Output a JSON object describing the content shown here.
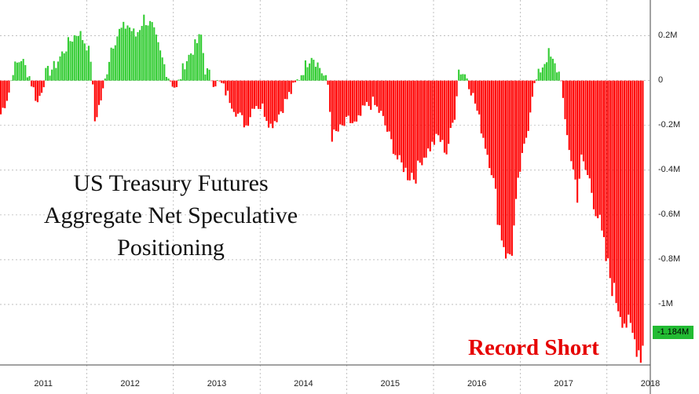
{
  "chart_data": {
    "type": "bar",
    "title": [
      "US Treasury Futures",
      "Aggregate Net Speculative",
      "Positioning"
    ],
    "annotation": "Record Short",
    "y_unit": "contracts",
    "ylim": [
      -1.27,
      0.36
    ],
    "y_ticks": [
      {
        "value": 0.2,
        "label": "0.2M"
      },
      {
        "value": 0,
        "label": "0"
      },
      {
        "value": -0.2,
        "label": "-0.2M"
      },
      {
        "value": -0.4,
        "label": "-0.4M"
      },
      {
        "value": -0.6,
        "label": "-0.6M"
      },
      {
        "value": -0.8,
        "label": "-0.8M"
      },
      {
        "value": -1.0,
        "label": "-1M"
      }
    ],
    "last_value": {
      "value": -1.184,
      "label": "-1.184M"
    },
    "x_categories": [
      "2011",
      "2012",
      "2013",
      "2014",
      "2015",
      "2016",
      "2017",
      "2018"
    ],
    "positive_color": "#33cc33",
    "negative_color": "#ff0000",
    "series_note_knots": "weekly values in millions of contracts, interpolated between knots",
    "knots": [
      [
        0,
        -0.15
      ],
      [
        4,
        -0.05
      ],
      [
        6,
        0.05
      ],
      [
        10,
        0.1
      ],
      [
        14,
        0.02
      ],
      [
        18,
        -0.1
      ],
      [
        22,
        0.03
      ],
      [
        26,
        0.06
      ],
      [
        30,
        0.12
      ],
      [
        34,
        0.18
      ],
      [
        38,
        0.22
      ],
      [
        42,
        0.16
      ],
      [
        44,
        0.1
      ],
      [
        46,
        -0.18
      ],
      [
        50,
        -0.05
      ],
      [
        54,
        0.15
      ],
      [
        58,
        0.22
      ],
      [
        62,
        0.25
      ],
      [
        66,
        0.2
      ],
      [
        70,
        0.28
      ],
      [
        74,
        0.24
      ],
      [
        78,
        0.12
      ],
      [
        82,
        0.02
      ],
      [
        86,
        -0.04
      ],
      [
        90,
        0.08
      ],
      [
        94,
        0.14
      ],
      [
        98,
        0.2
      ],
      [
        100,
        0.05
      ],
      [
        104,
        0.0
      ],
      [
        108,
        -0.02
      ],
      [
        112,
        -0.08
      ],
      [
        116,
        -0.15
      ],
      [
        120,
        -0.2
      ],
      [
        124,
        -0.1
      ],
      [
        128,
        -0.12
      ],
      [
        132,
        -0.2
      ],
      [
        136,
        -0.15
      ],
      [
        140,
        -0.08
      ],
      [
        144,
        -0.02
      ],
      [
        148,
        0.05
      ],
      [
        152,
        0.12
      ],
      [
        156,
        0.06
      ],
      [
        160,
        -0.02
      ],
      [
        162,
        -0.25
      ],
      [
        166,
        -0.22
      ],
      [
        170,
        -0.18
      ],
      [
        174,
        -0.2
      ],
      [
        178,
        -0.12
      ],
      [
        182,
        -0.1
      ],
      [
        186,
        -0.15
      ],
      [
        190,
        -0.25
      ],
      [
        194,
        -0.35
      ],
      [
        198,
        -0.4
      ],
      [
        202,
        -0.42
      ],
      [
        206,
        -0.35
      ],
      [
        210,
        -0.3
      ],
      [
        214,
        -0.25
      ],
      [
        218,
        -0.32
      ],
      [
        222,
        -0.15
      ],
      [
        224,
        0.05
      ],
      [
        228,
        0.02
      ],
      [
        232,
        -0.1
      ],
      [
        236,
        -0.25
      ],
      [
        240,
        -0.4
      ],
      [
        244,
        -0.65
      ],
      [
        248,
        -0.8
      ],
      [
        250,
        -0.75
      ],
      [
        254,
        -0.4
      ],
      [
        258,
        -0.2
      ],
      [
        260,
        -0.05
      ],
      [
        264,
        0.05
      ],
      [
        268,
        0.12
      ],
      [
        270,
        0.08
      ],
      [
        274,
        0.02
      ],
      [
        276,
        -0.2
      ],
      [
        280,
        -0.4
      ],
      [
        282,
        -0.5
      ],
      [
        284,
        -0.35
      ],
      [
        288,
        -0.45
      ],
      [
        292,
        -0.6
      ],
      [
        296,
        -0.8
      ],
      [
        300,
        -0.95
      ],
      [
        304,
        -1.05
      ],
      [
        308,
        -1.12
      ],
      [
        312,
        -1.2
      ],
      [
        313,
        -1.26
      ],
      [
        314,
        -1.184
      ]
    ],
    "knot_x_unit": "week index from start of 2011"
  }
}
